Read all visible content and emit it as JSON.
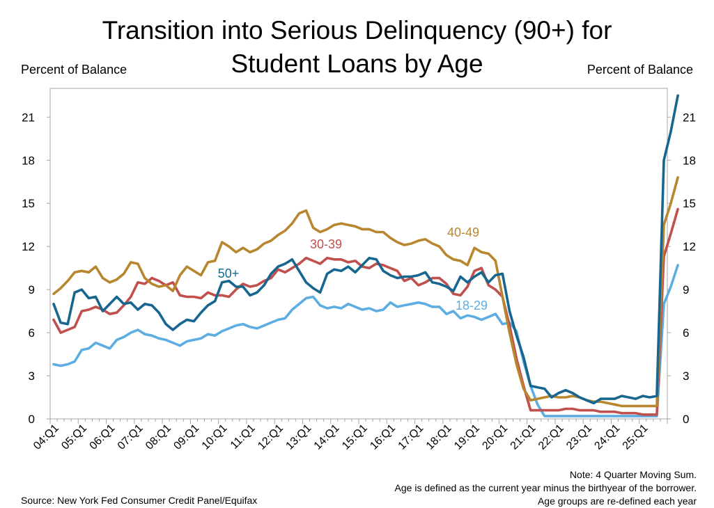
{
  "title_line1": "Transition into Serious Delinquency (90+) for",
  "title_line2": "Student Loans by Age",
  "left_axis_label": "Percent of Balance",
  "right_axis_label": "Percent of Balance",
  "source": "Source: New York Fed Consumer Credit Panel/Equifax",
  "notes": [
    "Note: 4 Quarter Moving Sum.",
    "Age is defined as the current year minus the birthyear of the borrower.",
    "Age groups are re-defined each year"
  ],
  "chart_data": {
    "type": "line",
    "title": "Transition into Serious Delinquency (90+) for Student Loans by Age",
    "ylabel": "Percent of Balance",
    "y2label": "Percent of Balance",
    "ylim": [
      0,
      23
    ],
    "yticks": [
      0,
      3,
      6,
      9,
      12,
      15,
      18,
      21
    ],
    "grid": false,
    "x_start": "04:Q1",
    "x_end": "25:Q4",
    "xticks": [
      "04:Q1",
      "05:Q1",
      "06:Q1",
      "07:Q1",
      "08:Q1",
      "09:Q1",
      "10:Q1",
      "11:Q1",
      "12:Q1",
      "13:Q1",
      "14:Q1",
      "15:Q1",
      "16:Q1",
      "17:Q1",
      "18:Q1",
      "19:Q1",
      "20:Q1",
      "21:Q1",
      "22:Q1",
      "23:Q1",
      "24:Q1",
      "25:Q1"
    ],
    "series": [
      {
        "name": "18-29",
        "color": "#5dade2",
        "values": [
          3.8,
          3.7,
          3.8,
          4.0,
          4.8,
          4.9,
          5.3,
          5.1,
          4.9,
          5.5,
          5.7,
          6.0,
          6.2,
          5.9,
          5.8,
          5.6,
          5.5,
          5.3,
          5.1,
          5.4,
          5.5,
          5.6,
          5.9,
          5.8,
          6.1,
          6.3,
          6.5,
          6.6,
          6.4,
          6.3,
          6.5,
          6.7,
          6.9,
          7.0,
          7.6,
          8.0,
          8.4,
          8.5,
          7.9,
          7.7,
          7.8,
          7.7,
          8.0,
          7.8,
          7.6,
          7.7,
          7.5,
          7.6,
          8.1,
          7.8,
          7.9,
          8.0,
          8.1,
          8.0,
          7.8,
          7.8,
          7.3,
          7.5,
          7.0,
          7.2,
          7.1,
          6.9,
          7.1,
          7.3,
          6.6,
          6.7,
          6.1,
          4.0,
          2.3,
          1.0,
          0.2,
          0.2,
          0.2,
          0.2,
          0.2,
          0.2,
          0.2,
          0.2,
          0.2,
          0.2,
          0.2,
          0.2,
          0.2,
          0.2,
          0.2,
          0.2,
          0.2,
          8.0,
          9.2,
          10.7
        ]
      },
      {
        "name": "30-39",
        "color": "#c0504d",
        "values": [
          6.9,
          6.0,
          6.2,
          6.4,
          7.5,
          7.6,
          7.8,
          7.6,
          7.3,
          7.4,
          7.9,
          8.5,
          9.5,
          9.4,
          9.8,
          9.6,
          9.3,
          9.5,
          8.6,
          8.5,
          8.5,
          8.4,
          8.8,
          8.6,
          8.6,
          8.5,
          9.0,
          9.4,
          9.2,
          9.3,
          9.6,
          9.8,
          10.4,
          10.2,
          10.5,
          10.8,
          11.2,
          11.0,
          10.8,
          11.2,
          11.1,
          11.1,
          10.9,
          11.0,
          10.6,
          10.5,
          10.8,
          10.7,
          10.5,
          10.3,
          9.6,
          9.8,
          9.3,
          9.5,
          9.8,
          9.8,
          9.4,
          8.7,
          8.6,
          9.2,
          10.3,
          10.5,
          9.3,
          9.0,
          8.5,
          6.5,
          4.2,
          2.3,
          0.6,
          0.6,
          0.6,
          0.6,
          0.6,
          0.7,
          0.7,
          0.6,
          0.6,
          0.6,
          0.5,
          0.5,
          0.5,
          0.4,
          0.4,
          0.4,
          0.3,
          0.3,
          0.3,
          11.3,
          12.9,
          14.6
        ]
      },
      {
        "name": "40-49",
        "color": "#b8862e",
        "values": [
          8.7,
          9.1,
          9.6,
          10.2,
          10.3,
          10.2,
          10.6,
          9.8,
          9.5,
          9.7,
          10.1,
          10.9,
          10.8,
          9.8,
          9.4,
          9.2,
          9.3,
          8.9,
          10.0,
          10.6,
          10.3,
          10.0,
          10.9,
          11.0,
          12.3,
          12.0,
          11.6,
          11.9,
          11.6,
          11.8,
          12.2,
          12.4,
          12.8,
          13.1,
          13.6,
          14.3,
          14.5,
          13.3,
          13.0,
          13.2,
          13.5,
          13.6,
          13.5,
          13.4,
          13.2,
          13.2,
          13.0,
          13.0,
          12.6,
          12.3,
          12.1,
          12.2,
          12.4,
          12.5,
          12.2,
          12.0,
          11.4,
          11.1,
          11.0,
          10.7,
          11.9,
          11.6,
          11.5,
          11.0,
          8.5,
          6.0,
          3.8,
          2.1,
          1.3,
          1.4,
          1.5,
          1.6,
          1.5,
          1.5,
          1.6,
          1.5,
          1.3,
          1.2,
          1.2,
          1.1,
          1.0,
          0.9,
          0.9,
          0.9,
          0.9,
          0.9,
          0.9,
          13.5,
          15.0,
          16.8
        ]
      },
      {
        "name": "50+",
        "color": "#17668f",
        "values": [
          8.0,
          6.7,
          6.6,
          8.8,
          9.0,
          8.4,
          8.5,
          7.5,
          8.0,
          8.5,
          8.0,
          8.1,
          7.6,
          8.0,
          7.9,
          7.4,
          6.6,
          6.2,
          6.6,
          6.9,
          6.8,
          7.4,
          7.9,
          8.2,
          9.5,
          9.6,
          9.2,
          9.2,
          8.6,
          8.8,
          9.3,
          10.1,
          10.6,
          10.8,
          11.1,
          10.3,
          9.5,
          9.1,
          8.8,
          10.1,
          10.4,
          10.3,
          10.6,
          10.2,
          10.7,
          11.2,
          11.1,
          10.3,
          10.0,
          9.8,
          9.9,
          9.9,
          10.0,
          10.2,
          9.5,
          9.4,
          9.2,
          8.9,
          9.9,
          9.5,
          9.9,
          10.2,
          9.5,
          10.0,
          10.1,
          7.5,
          5.8,
          4.3,
          2.3,
          2.2,
          2.1,
          1.5,
          1.8,
          2.0,
          1.8,
          1.5,
          1.3,
          1.1,
          1.4,
          1.4,
          1.4,
          1.6,
          1.5,
          1.4,
          1.6,
          1.5,
          1.6,
          18.0,
          20.0,
          22.5
        ]
      }
    ],
    "series_labels": [
      "50+",
      "30-39",
      "40-49",
      "18-29"
    ]
  }
}
